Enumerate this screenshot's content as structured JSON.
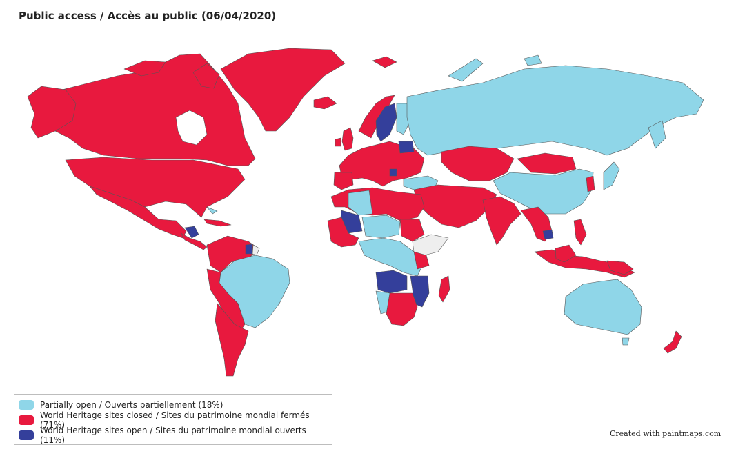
{
  "title": "Public access / Accès au public (06/04/2020)",
  "colors": {
    "partially_open": "#8fd6e8",
    "closed": "#e8193e",
    "open": "#343f9b",
    "no_data": "#eeeeee",
    "border": "#555555"
  },
  "legend": {
    "items": [
      {
        "label": "Partially open / Ouverts partiellement (18%)",
        "color": "#8fd6e8"
      },
      {
        "label": "World Heritage sites closed / Sites du patrimoine mondial fermés (71%)",
        "color": "#e8193e"
      },
      {
        "label": "World Heritage sites open / Sites du patrimoine mondial ouverts (11%)",
        "color": "#343f9b"
      }
    ]
  },
  "credit": "Created with paintmaps.com"
}
